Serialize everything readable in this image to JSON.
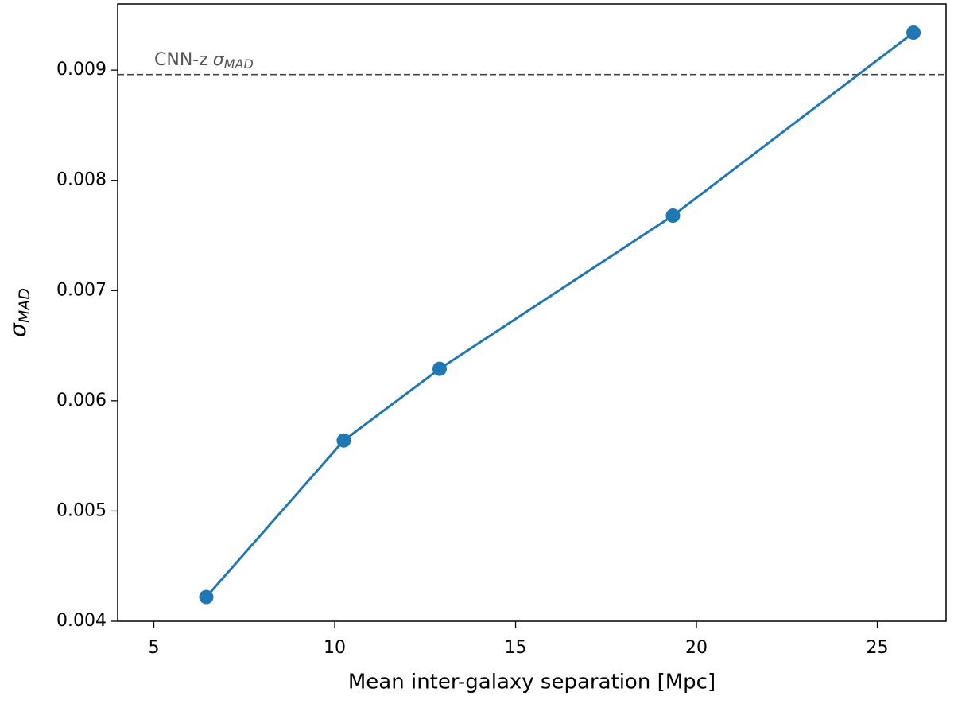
{
  "chart_data": {
    "type": "line",
    "xlabel": "Mean inter-galaxy separation [Mpc]",
    "ylabel": [
      "σ",
      "MAD"
    ],
    "x": [
      6.45,
      10.25,
      12.9,
      19.35,
      26.0
    ],
    "values": [
      0.00422,
      0.00564,
      0.00629,
      0.00768,
      0.00934
    ],
    "color": "#1f77b4",
    "xlim": [
      4.0,
      26.9
    ],
    "xticks": [
      5,
      10,
      15,
      20,
      25
    ],
    "ylim": [
      0.004,
      0.0096
    ],
    "yticks": [
      0.004,
      0.005,
      0.006,
      0.007,
      0.008,
      0.009
    ],
    "reference_line": {
      "value": 0.00896,
      "color": "#444444",
      "label": [
        "CNN-z",
        "σ",
        "MAD"
      ]
    }
  }
}
